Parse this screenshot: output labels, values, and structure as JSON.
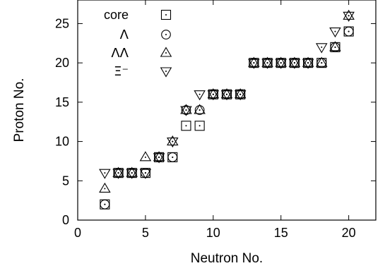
{
  "chart_data": {
    "type": "scatter",
    "xlabel": "Neutron No.",
    "ylabel": "Proton No.",
    "xlim": [
      0,
      22
    ],
    "ylim": [
      0,
      28
    ],
    "x_ticks": [
      0,
      5,
      10,
      15,
      20
    ],
    "y_ticks": [
      0,
      5,
      10,
      15,
      20,
      25
    ],
    "grid": false,
    "legend_position": "top-left",
    "series": [
      {
        "name": "core",
        "marker": "square-dot",
        "points": [
          [
            2,
            2
          ],
          [
            3,
            6
          ],
          [
            4,
            6
          ],
          [
            5,
            6
          ],
          [
            6,
            8
          ],
          [
            7,
            8
          ],
          [
            8,
            12
          ],
          [
            9,
            12
          ],
          [
            10,
            16
          ],
          [
            11,
            16
          ],
          [
            12,
            16
          ],
          [
            13,
            20
          ],
          [
            14,
            20
          ],
          [
            15,
            20
          ],
          [
            16,
            20
          ],
          [
            17,
            20
          ],
          [
            18,
            20
          ],
          [
            19,
            22
          ],
          [
            20,
            24
          ]
        ]
      },
      {
        "name": "Λ",
        "marker": "circle-dot",
        "points": [
          [
            2,
            2
          ],
          [
            3,
            6
          ],
          [
            4,
            6
          ],
          [
            5,
            6
          ],
          [
            6,
            8
          ],
          [
            7,
            8
          ],
          [
            8,
            14
          ],
          [
            9,
            14
          ],
          [
            10,
            16
          ],
          [
            11,
            16
          ],
          [
            12,
            16
          ],
          [
            13,
            20
          ],
          [
            14,
            20
          ],
          [
            15,
            20
          ],
          [
            16,
            20
          ],
          [
            17,
            20
          ],
          [
            18,
            20
          ],
          [
            19,
            22
          ],
          [
            20,
            24
          ]
        ]
      },
      {
        "name": "ΛΛ",
        "marker": "triangle-up-dot",
        "points": [
          [
            2,
            4
          ],
          [
            3,
            6
          ],
          [
            4,
            6
          ],
          [
            5,
            8
          ],
          [
            6,
            8
          ],
          [
            7,
            10
          ],
          [
            8,
            14
          ],
          [
            9,
            14
          ],
          [
            10,
            16
          ],
          [
            11,
            16
          ],
          [
            12,
            16
          ],
          [
            13,
            20
          ],
          [
            14,
            20
          ],
          [
            15,
            20
          ],
          [
            16,
            20
          ],
          [
            17,
            20
          ],
          [
            18,
            20
          ],
          [
            19,
            22
          ],
          [
            20,
            26
          ]
        ]
      },
      {
        "name": "Ξ⁻",
        "marker": "triangle-down-dot",
        "points": [
          [
            2,
            6
          ],
          [
            3,
            6
          ],
          [
            4,
            6
          ],
          [
            5,
            6
          ],
          [
            6,
            8
          ],
          [
            7,
            10
          ],
          [
            8,
            14
          ],
          [
            9,
            16
          ],
          [
            10,
            16
          ],
          [
            11,
            16
          ],
          [
            12,
            16
          ],
          [
            13,
            20
          ],
          [
            14,
            20
          ],
          [
            15,
            20
          ],
          [
            16,
            20
          ],
          [
            17,
            20
          ],
          [
            18,
            22
          ],
          [
            19,
            24
          ],
          [
            20,
            26
          ]
        ]
      }
    ]
  }
}
